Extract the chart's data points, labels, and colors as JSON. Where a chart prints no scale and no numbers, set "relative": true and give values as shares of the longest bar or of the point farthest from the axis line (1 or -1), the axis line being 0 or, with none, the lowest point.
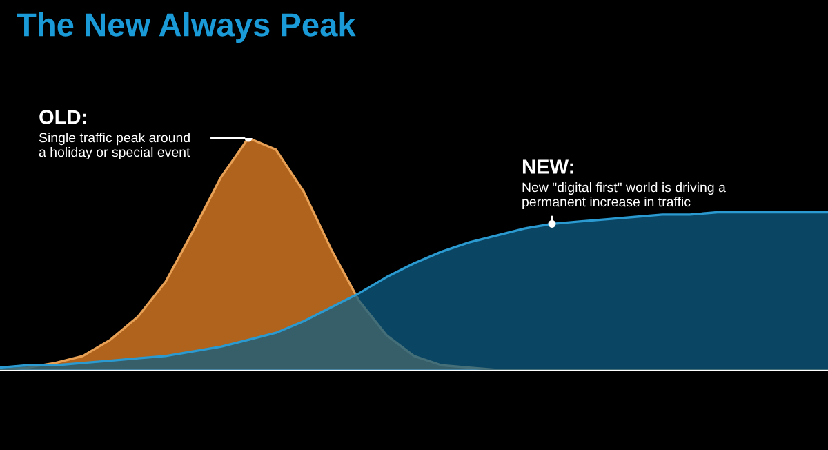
{
  "chart_data": {
    "type": "area",
    "title": "The New Always Peak",
    "relative": true,
    "categories": [
      null,
      null,
      null,
      null,
      null,
      null,
      null,
      null,
      null,
      null,
      null,
      null,
      null,
      null,
      null,
      null,
      null,
      null,
      null,
      null,
      null,
      null,
      null,
      null,
      null,
      null,
      null,
      null,
      null,
      null,
      null
    ],
    "series": [
      {
        "color": "#b8681f",
        "values": [
          0,
          0.01,
          0.03,
          0.06,
          0.13,
          0.23,
          0.38,
          0.6,
          0.83,
          1.0,
          0.95,
          0.77,
          0.52,
          0.3,
          0.15,
          0.06,
          0.02,
          0.01,
          0,
          0,
          0,
          0,
          0,
          0,
          0,
          0,
          0,
          0,
          0,
          0,
          0
        ]
      },
      {
        "color": "#0e5e84",
        "values": [
          0.01,
          0.02,
          0.02,
          0.03,
          0.04,
          0.05,
          0.06,
          0.08,
          0.1,
          0.13,
          0.16,
          0.21,
          0.27,
          0.33,
          0.4,
          0.46,
          0.51,
          0.55,
          0.58,
          0.61,
          0.63,
          0.64,
          0.65,
          0.66,
          0.67,
          0.67,
          0.68,
          0.68,
          0.68,
          0.68,
          0.68
        ]
      }
    ],
    "annotations": [
      "OLD:",
      "Single traffic peak around\na holiday or special event",
      "NEW:",
      "New \"digital first\" world is driving a\npermanent increase in traffic"
    ],
    "grid": false,
    "legend": false
  }
}
